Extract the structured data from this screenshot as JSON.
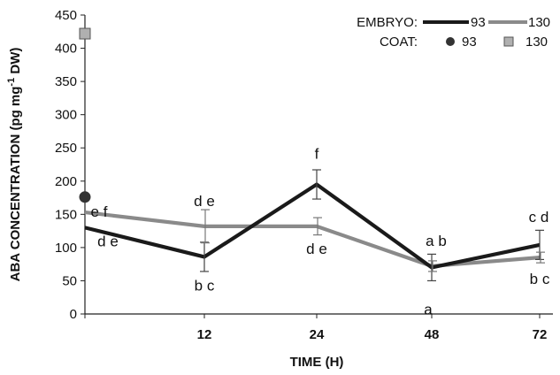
{
  "chart_data": {
    "type": "line",
    "xlabel": "TIME (H)",
    "ylabel": {
      "prefix": "ABA CONCENTRATION (pg mg",
      "superscript": "-1",
      "suffix": " DW)"
    },
    "ylim": [
      0,
      450
    ],
    "y_ticks": [
      0,
      50,
      100,
      150,
      200,
      250,
      300,
      350,
      400,
      450
    ],
    "x_categories": [
      "",
      "12",
      "24",
      "48",
      "72"
    ],
    "grid": false,
    "legend_position": "top-right",
    "legend": {
      "embryo_label": "EMBRYO:",
      "coat_label": "COAT:",
      "embryo_entries": [
        "93",
        "130"
      ],
      "coat_entries": [
        "93",
        "130"
      ]
    },
    "series": [
      {
        "name": "93",
        "group": "EMBRYO",
        "color": "#1a1a1a",
        "values": [
          130,
          86,
          195,
          70,
          104
        ],
        "errors": [
          null,
          22,
          22,
          20,
          22
        ]
      },
      {
        "name": "130",
        "group": "EMBRYO",
        "color": "#8a8a8a",
        "values": [
          153,
          132,
          132,
          72,
          85
        ],
        "errors": [
          null,
          25,
          13,
          8,
          8
        ]
      }
    ],
    "coat_points": [
      {
        "name": "93",
        "group": "COAT",
        "color": "#333333",
        "marker": "circle",
        "x_index": 0,
        "value": 176
      },
      {
        "name": "130",
        "group": "COAT",
        "color": "#b0b0b0",
        "marker": "square",
        "x_index": 0,
        "value": 422
      }
    ],
    "annotations": [
      {
        "text": "e f",
        "x_index": 0,
        "value": 153
      },
      {
        "text": "d e",
        "x_index": 0,
        "value": 130
      },
      {
        "text": "d e",
        "x_index": 1,
        "value": 132
      },
      {
        "text": "b c",
        "x_index": 1,
        "value": 86
      },
      {
        "text": "f",
        "x_index": 2,
        "value": 195
      },
      {
        "text": "d e",
        "x_index": 2,
        "value": 132
      },
      {
        "text": "a b",
        "x_index": 3,
        "value": 72
      },
      {
        "text": "a",
        "x_index": 3,
        "value": 70
      },
      {
        "text": "c d",
        "x_index": 4,
        "value": 104
      },
      {
        "text": "b c",
        "x_index": 4,
        "value": 85
      }
    ]
  }
}
